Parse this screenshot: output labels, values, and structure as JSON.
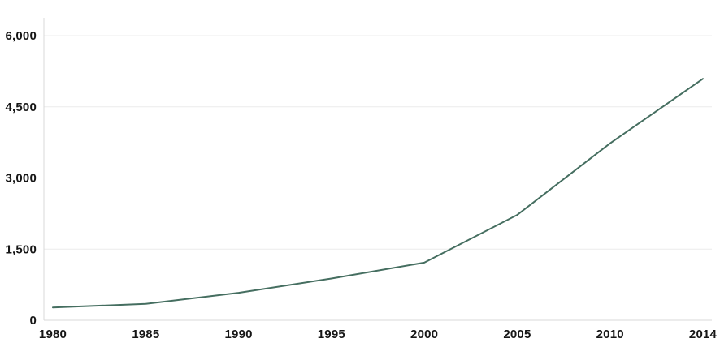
{
  "chart_data": {
    "type": "line",
    "title": "",
    "xlabel": "",
    "ylabel": "",
    "categories": [
      "1980",
      "1985",
      "1990",
      "1995",
      "2000",
      "2005",
      "2010",
      "2014"
    ],
    "series": [
      {
        "name": "value",
        "values": [
          270,
          345,
          580,
          880,
          1215,
          2220,
          3730,
          5090
        ]
      }
    ],
    "y_ticks": [
      0,
      1500,
      3000,
      4500,
      6000
    ],
    "y_tick_labels": [
      "0",
      "1,500",
      "3,000",
      "4,500",
      "6,000"
    ],
    "ylim": [
      0,
      6000
    ],
    "grid": "horizontal",
    "legend": "none",
    "colors": {
      "line": "#456e60",
      "gridline": "#ececec",
      "axis_line": "#d8d8d8",
      "label_text": "#161616",
      "background": "#ffffff"
    }
  }
}
